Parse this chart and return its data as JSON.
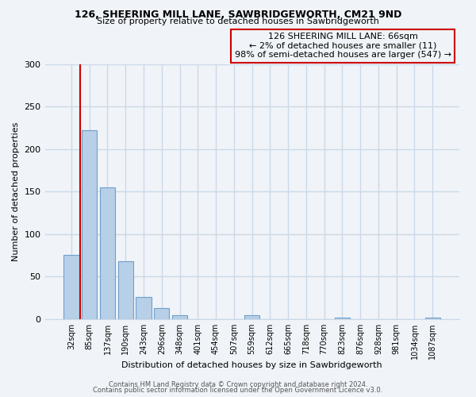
{
  "title": "126, SHEERING MILL LANE, SAWBRIDGEWORTH, CM21 9ND",
  "subtitle": "Size of property relative to detached houses in Sawbridgeworth",
  "xlabel": "Distribution of detached houses by size in Sawbridgeworth",
  "ylabel": "Number of detached properties",
  "bar_labels": [
    "32sqm",
    "85sqm",
    "137sqm",
    "190sqm",
    "243sqm",
    "296sqm",
    "348sqm",
    "401sqm",
    "454sqm",
    "507sqm",
    "559sqm",
    "612sqm",
    "665sqm",
    "718sqm",
    "770sqm",
    "823sqm",
    "876sqm",
    "928sqm",
    "981sqm",
    "1034sqm",
    "1087sqm"
  ],
  "bar_values": [
    76,
    222,
    155,
    68,
    26,
    13,
    5,
    0,
    0,
    0,
    5,
    0,
    0,
    0,
    0,
    2,
    0,
    0,
    0,
    0,
    2
  ],
  "bar_color": "#b8cfe8",
  "bar_edge_color": "#6fa0cc",
  "vline_x": 0.5,
  "vline_color": "#cc0000",
  "ylim": [
    0,
    300
  ],
  "yticks": [
    0,
    50,
    100,
    150,
    200,
    250,
    300
  ],
  "annotation_text": "126 SHEERING MILL LANE: 66sqm\n← 2% of detached houses are smaller (11)\n98% of semi-detached houses are larger (547) →",
  "footer1": "Contains HM Land Registry data © Crown copyright and database right 2024.",
  "footer2": "Contains public sector information licensed under the Open Government Licence v3.0.",
  "bg_color": "#f0f4f8",
  "grid_color": "#ccd9e8"
}
